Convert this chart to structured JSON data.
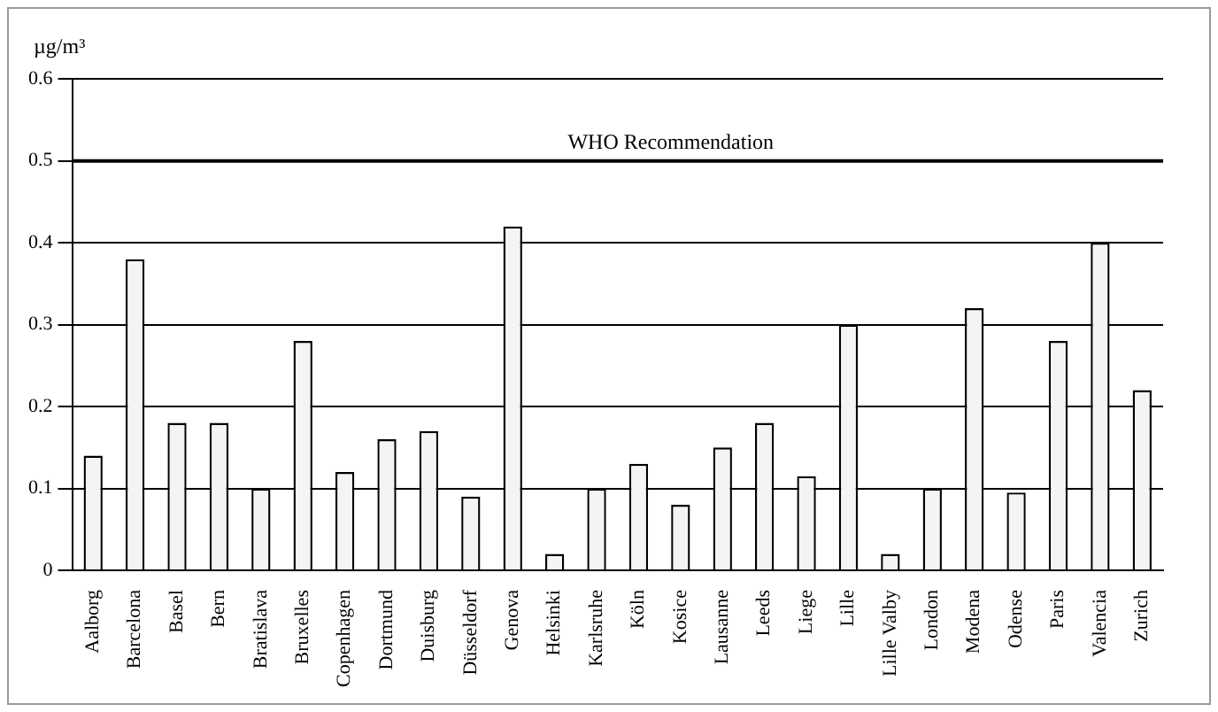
{
  "chart_data": {
    "type": "bar",
    "ylabel": "µg/m³",
    "categories": [
      "Aalborg",
      "Barcelona",
      "Basel",
      "Bern",
      "Bratislava",
      "Bruxelles",
      "Copenhagen",
      "Dortmund",
      "Duisburg",
      "Düsseldorf",
      "Genova",
      "Helsinki",
      "Karlsruhe",
      "Köln",
      "Kosice",
      "Lausanne",
      "Leeds",
      "Liege",
      "Lille",
      "Lille Valby",
      "London",
      "Modena",
      "Odense",
      "Paris",
      "Valencia",
      "Zurich"
    ],
    "values": [
      0.14,
      0.38,
      0.18,
      0.18,
      0.1,
      0.28,
      0.12,
      0.16,
      0.17,
      0.09,
      0.42,
      0.02,
      0.1,
      0.13,
      0.08,
      0.15,
      0.18,
      0.115,
      0.3,
      0.02,
      0.1,
      0.32,
      0.095,
      0.28,
      0.4,
      0.22
    ],
    "color": "#f4f4f4",
    "ylim": [
      0,
      0.6
    ],
    "yticks": [
      0,
      0.1,
      0.2,
      0.3,
      0.4,
      0.5,
      0.6
    ],
    "grid": "y",
    "ref_lines": [
      {
        "axis": "y",
        "value": 0.5,
        "label": "WHO Recommendation",
        "color": "#000000"
      }
    ]
  }
}
